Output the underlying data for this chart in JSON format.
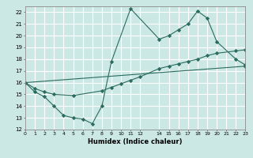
{
  "bg_color": "#cce8e5",
  "line_color": "#2a6b5e",
  "grid_color": "#ffffff",
  "xlabel": "Humidex (Indice chaleur)",
  "xlim": [
    0,
    23
  ],
  "ylim": [
    12,
    22.5
  ],
  "yticks": [
    12,
    13,
    14,
    15,
    16,
    17,
    18,
    19,
    20,
    21,
    22
  ],
  "xticks": [
    0,
    1,
    2,
    3,
    4,
    5,
    6,
    7,
    8,
    9,
    10,
    11,
    12,
    14,
    15,
    16,
    17,
    18,
    19,
    20,
    21,
    22,
    23
  ],
  "xtick_labels": [
    "0",
    "1",
    "2",
    "3",
    "4",
    "5",
    "6",
    "7",
    "8",
    "9",
    "10",
    "11",
    "12",
    "14",
    "15",
    "16",
    "17",
    "18",
    "19",
    "20",
    "21",
    "22",
    "23"
  ],
  "line1_x": [
    0,
    1,
    2,
    3,
    4,
    5,
    6,
    7,
    8,
    9,
    11,
    14,
    15,
    16,
    17,
    18,
    19,
    20,
    22,
    23
  ],
  "line1_y": [
    16,
    15.2,
    14.8,
    14,
    13.2,
    13,
    12.9,
    12.5,
    14.0,
    17.8,
    22.3,
    19.7,
    20.0,
    20.5,
    21.0,
    22.1,
    21.5,
    19.5,
    18.0,
    17.5
  ],
  "line2_x": [
    0,
    1,
    2,
    3,
    5,
    8,
    9,
    10,
    11,
    12,
    14,
    15,
    16,
    17,
    18,
    19,
    20,
    22,
    23
  ],
  "line2_y": [
    16,
    15.5,
    15.2,
    15.0,
    14.9,
    15.3,
    15.6,
    15.9,
    16.2,
    16.5,
    17.2,
    17.4,
    17.6,
    17.8,
    18.0,
    18.3,
    18.5,
    18.7,
    18.8
  ],
  "line3_x": [
    0,
    23
  ],
  "line3_y": [
    16.0,
    17.4
  ]
}
